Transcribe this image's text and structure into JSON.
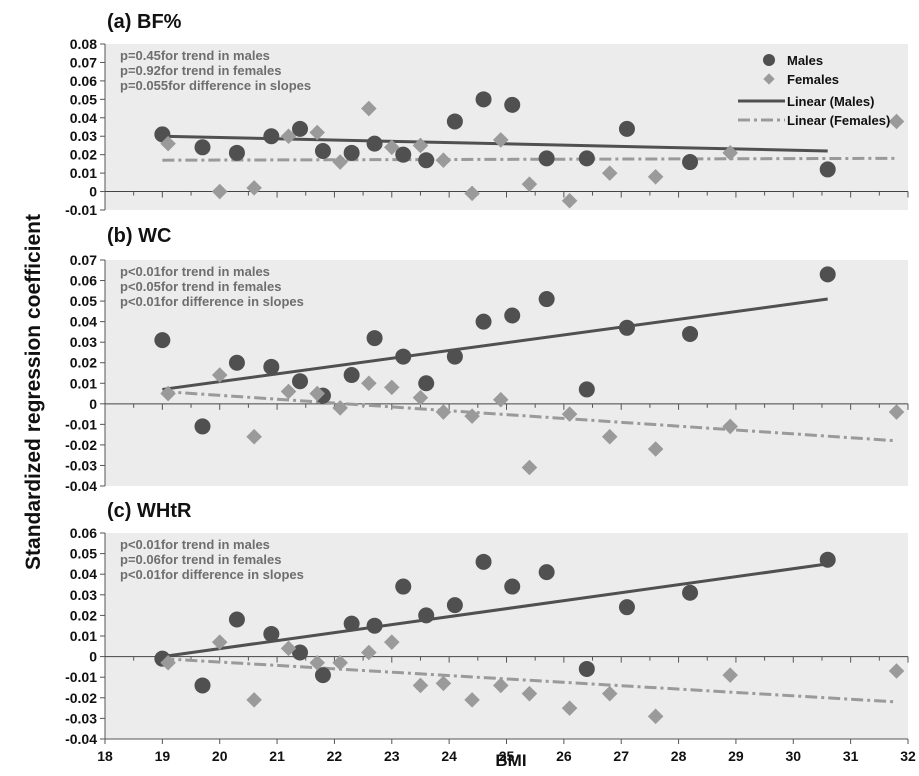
{
  "ylabel": "Standardized regression coefficient",
  "xlabel": "BMI",
  "colors": {
    "males": "#505050",
    "females": "#9a9a9a",
    "panel_bg": "#ececec"
  },
  "legend": {
    "placement": "top-right of panel (a)",
    "males": "Males",
    "females": "Females",
    "linear_males": "Linear (Males)",
    "linear_females": "Linear (Females)"
  },
  "chart_data": [
    {
      "type": "scatter",
      "title": "(a) BF%",
      "xlim": [
        18,
        32
      ],
      "ylim": [
        -0.01,
        0.08
      ],
      "yticks": [
        "0.08",
        "0.07",
        "0.06",
        "0.05",
        "0.04",
        "0.03",
        "0.02",
        "0.01",
        "0",
        "-0.01"
      ],
      "annotations": [
        "p=0.45for trend in males",
        "p=0.92for trend in females",
        "p=0.055for difference in slopes"
      ],
      "series": [
        {
          "name": "Males",
          "points": [
            [
              19.0,
              0.031
            ],
            [
              19.7,
              0.024
            ],
            [
              20.3,
              0.021
            ],
            [
              20.9,
              0.03
            ],
            [
              21.4,
              0.034
            ],
            [
              21.8,
              0.022
            ],
            [
              22.3,
              0.021
            ],
            [
              22.7,
              0.026
            ],
            [
              23.2,
              0.02
            ],
            [
              23.6,
              0.017
            ],
            [
              24.1,
              0.038
            ],
            [
              24.6,
              0.05
            ],
            [
              25.1,
              0.047
            ],
            [
              25.7,
              0.018
            ],
            [
              26.4,
              0.018
            ],
            [
              27.1,
              0.034
            ],
            [
              28.2,
              0.016
            ],
            [
              30.6,
              0.012
            ]
          ]
        },
        {
          "name": "Females",
          "points": [
            [
              19.1,
              0.026
            ],
            [
              20.0,
              0.0
            ],
            [
              20.6,
              0.002
            ],
            [
              21.2,
              0.03
            ],
            [
              21.7,
              0.032
            ],
            [
              22.1,
              0.016
            ],
            [
              22.6,
              0.045
            ],
            [
              23.0,
              0.024
            ],
            [
              23.5,
              0.025
            ],
            [
              23.9,
              0.017
            ],
            [
              24.4,
              -0.001
            ],
            [
              24.9,
              0.028
            ],
            [
              25.4,
              0.004
            ],
            [
              26.1,
              -0.005
            ],
            [
              26.8,
              0.01
            ],
            [
              27.6,
              0.008
            ],
            [
              28.9,
              0.021
            ],
            [
              31.8,
              0.038
            ]
          ]
        },
        {
          "name": "Linear (Males)",
          "line": [
            [
              19.0,
              0.03
            ],
            [
              30.6,
              0.022
            ]
          ]
        },
        {
          "name": "Linear (Females)",
          "line": [
            [
              19.0,
              0.017
            ],
            [
              31.8,
              0.018
            ]
          ]
        }
      ]
    },
    {
      "type": "scatter",
      "title": "(b) WC",
      "xlim": [
        18,
        32
      ],
      "ylim": [
        -0.04,
        0.07
      ],
      "yticks": [
        "0.07",
        "0.06",
        "0.05",
        "0.04",
        "0.03",
        "0.02",
        "0.01",
        "0",
        "-0.01",
        "-0.02",
        "-0.03",
        "-0.04"
      ],
      "annotations": [
        "p<0.01for trend in males",
        "p<0.05for trend in females",
        "p<0.01for difference in slopes"
      ],
      "series": [
        {
          "name": "Males",
          "points": [
            [
              19.0,
              0.031
            ],
            [
              19.7,
              -0.011
            ],
            [
              20.3,
              0.02
            ],
            [
              20.9,
              0.018
            ],
            [
              21.4,
              0.011
            ],
            [
              21.8,
              0.004
            ],
            [
              22.3,
              0.014
            ],
            [
              22.7,
              0.032
            ],
            [
              23.2,
              0.023
            ],
            [
              23.6,
              0.01
            ],
            [
              24.1,
              0.023
            ],
            [
              24.6,
              0.04
            ],
            [
              25.1,
              0.043
            ],
            [
              25.7,
              0.051
            ],
            [
              26.4,
              0.007
            ],
            [
              27.1,
              0.037
            ],
            [
              28.2,
              0.034
            ],
            [
              30.6,
              0.063
            ]
          ]
        },
        {
          "name": "Females",
          "points": [
            [
              19.1,
              0.005
            ],
            [
              20.0,
              0.014
            ],
            [
              20.6,
              -0.016
            ],
            [
              21.2,
              0.006
            ],
            [
              21.7,
              0.005
            ],
            [
              22.1,
              -0.002
            ],
            [
              22.6,
              0.01
            ],
            [
              23.0,
              0.008
            ],
            [
              23.5,
              0.003
            ],
            [
              23.9,
              -0.004
            ],
            [
              24.4,
              -0.006
            ],
            [
              24.9,
              0.002
            ],
            [
              25.4,
              -0.031
            ],
            [
              26.1,
              -0.005
            ],
            [
              26.8,
              -0.016
            ],
            [
              27.6,
              -0.022
            ],
            [
              28.9,
              -0.011
            ],
            [
              31.8,
              -0.004
            ]
          ]
        },
        {
          "name": "Linear (Males)",
          "line": [
            [
              19.0,
              0.007
            ],
            [
              30.6,
              0.051
            ]
          ]
        },
        {
          "name": "Linear (Females)",
          "line": [
            [
              19.0,
              0.006
            ],
            [
              31.8,
              -0.018
            ]
          ]
        }
      ]
    },
    {
      "type": "scatter",
      "title": "(c) WHtR",
      "xlim": [
        18,
        32
      ],
      "ylim": [
        -0.04,
        0.06
      ],
      "yticks": [
        "0.06",
        "0.05",
        "0.04",
        "0.03",
        "0.02",
        "0.01",
        "0",
        "-0.01",
        "-0.02",
        "-0.03",
        "-0.04"
      ],
      "xticks": [
        "18",
        "19",
        "20",
        "21",
        "22",
        "23",
        "24",
        "25",
        "26",
        "27",
        "28",
        "29",
        "30",
        "31",
        "32"
      ],
      "annotations": [
        "p<0.01for trend in males",
        "p=0.06for trend in females",
        "p<0.01for difference in slopes"
      ],
      "series": [
        {
          "name": "Males",
          "points": [
            [
              19.0,
              -0.001
            ],
            [
              19.7,
              -0.014
            ],
            [
              20.3,
              0.018
            ],
            [
              20.9,
              0.011
            ],
            [
              21.4,
              0.002
            ],
            [
              21.8,
              -0.009
            ],
            [
              22.3,
              0.016
            ],
            [
              22.7,
              0.015
            ],
            [
              23.2,
              0.034
            ],
            [
              23.6,
              0.02
            ],
            [
              24.1,
              0.025
            ],
            [
              24.6,
              0.046
            ],
            [
              25.1,
              0.034
            ],
            [
              25.7,
              0.041
            ],
            [
              26.4,
              -0.006
            ],
            [
              27.1,
              0.024
            ],
            [
              28.2,
              0.031
            ],
            [
              30.6,
              0.047
            ]
          ]
        },
        {
          "name": "Females",
          "points": [
            [
              19.1,
              -0.003
            ],
            [
              20.0,
              0.007
            ],
            [
              20.6,
              -0.021
            ],
            [
              21.2,
              0.004
            ],
            [
              21.7,
              -0.003
            ],
            [
              22.1,
              -0.003
            ],
            [
              22.6,
              0.002
            ],
            [
              23.0,
              0.007
            ],
            [
              23.5,
              -0.014
            ],
            [
              23.9,
              -0.013
            ],
            [
              24.4,
              -0.021
            ],
            [
              24.9,
              -0.014
            ],
            [
              25.4,
              -0.018
            ],
            [
              26.1,
              -0.025
            ],
            [
              26.8,
              -0.018
            ],
            [
              27.6,
              -0.029
            ],
            [
              28.9,
              -0.009
            ],
            [
              31.8,
              -0.007
            ]
          ]
        },
        {
          "name": "Linear (Males)",
          "line": [
            [
              19.0,
              0.0
            ],
            [
              30.6,
              0.045
            ]
          ]
        },
        {
          "name": "Linear (Females)",
          "line": [
            [
              19.0,
              -0.001
            ],
            [
              31.8,
              -0.022
            ]
          ]
        }
      ]
    }
  ]
}
